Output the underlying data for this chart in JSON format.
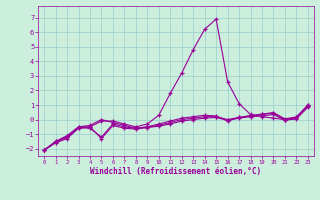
{
  "xlabel": "Windchill (Refroidissement éolien,°C)",
  "bg_color": "#cceedd",
  "grid_color": "#99cccc",
  "line_color": "#990099",
  "xlim": [
    -0.5,
    23.5
  ],
  "ylim": [
    -2.5,
    7.8
  ],
  "xticks": [
    0,
    1,
    2,
    3,
    4,
    5,
    6,
    7,
    8,
    9,
    10,
    11,
    12,
    13,
    14,
    15,
    16,
    17,
    18,
    19,
    20,
    21,
    22,
    23
  ],
  "yticks": [
    -2,
    -1,
    0,
    1,
    2,
    3,
    4,
    5,
    6,
    7
  ],
  "spike_x": [
    0,
    1,
    2,
    3,
    4,
    5,
    6,
    7,
    8,
    9,
    10,
    11,
    12,
    13,
    14,
    15,
    16,
    17,
    18,
    19,
    20,
    21,
    22,
    23
  ],
  "spike_y": [
    -2.1,
    -1.5,
    -1.2,
    -0.5,
    -0.5,
    -0.1,
    -0.1,
    -0.3,
    -0.5,
    -0.3,
    0.3,
    1.8,
    3.2,
    4.8,
    6.2,
    6.9,
    2.6,
    1.1,
    0.35,
    0.2,
    0.1,
    0.0,
    0.1,
    1.0
  ],
  "flat1_x": [
    0,
    1,
    2,
    3,
    4,
    5,
    6,
    7,
    8,
    9,
    10,
    11,
    12,
    13,
    14,
    15,
    16,
    17,
    18,
    19,
    20,
    21,
    22,
    23
  ],
  "flat1_y": [
    -2.1,
    -1.6,
    -1.3,
    -0.6,
    -0.5,
    -1.3,
    -0.4,
    -0.6,
    -0.65,
    -0.55,
    -0.45,
    -0.3,
    -0.1,
    0.0,
    0.1,
    0.15,
    -0.05,
    0.1,
    0.2,
    0.25,
    0.35,
    -0.05,
    0.05,
    0.85
  ],
  "flat2_x": [
    0,
    1,
    2,
    3,
    4,
    5,
    6,
    7,
    8,
    9,
    10,
    11,
    12,
    13,
    14,
    15,
    16,
    17,
    18,
    19,
    20,
    21,
    22,
    23
  ],
  "flat2_y": [
    -2.1,
    -1.55,
    -1.2,
    -0.55,
    -0.6,
    -1.2,
    -0.3,
    -0.5,
    -0.6,
    -0.5,
    -0.4,
    -0.2,
    0.0,
    0.1,
    0.2,
    0.2,
    -0.0,
    0.15,
    0.25,
    0.35,
    0.45,
    0.0,
    0.15,
    0.95
  ],
  "flat3_x": [
    0,
    1,
    2,
    3,
    4,
    5,
    6,
    7,
    8,
    9,
    10,
    11,
    12,
    13,
    14,
    15,
    16,
    17,
    18,
    19,
    20,
    21,
    22,
    23
  ],
  "flat3_y": [
    -2.1,
    -1.5,
    -1.1,
    -0.5,
    -0.4,
    0.0,
    -0.2,
    -0.4,
    -0.6,
    -0.5,
    -0.3,
    -0.1,
    0.1,
    0.2,
    0.3,
    0.25,
    -0.1,
    0.15,
    0.28,
    0.38,
    0.48,
    0.05,
    0.18,
    1.0
  ]
}
